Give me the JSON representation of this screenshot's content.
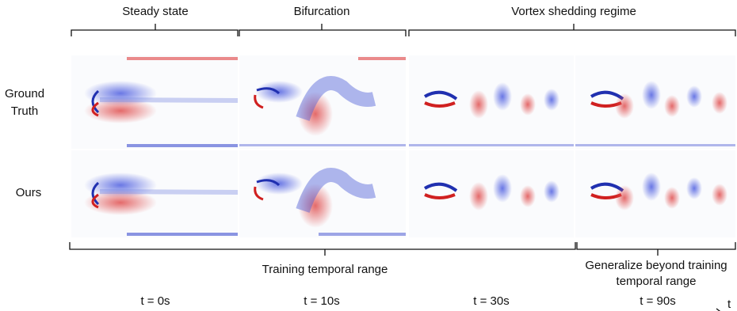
{
  "top_labels": {
    "steady": "Steady state",
    "bifurcation": "Bifurcation",
    "vortex": "Vortex shedding regime"
  },
  "rows": {
    "ground_truth": "Ground Truth",
    "ours": "Ours"
  },
  "bottom_labels": {
    "training": "Training temporal range",
    "generalize": "Generalize beyond training temporal range"
  },
  "time_axis": {
    "t0": "t = 0s",
    "t1": "t = 10s",
    "t2": "t = 30s",
    "t3": "t = 90s",
    "axis_label": "t"
  },
  "colors": {
    "positive": "#e03030",
    "negative": "#3040d0"
  }
}
